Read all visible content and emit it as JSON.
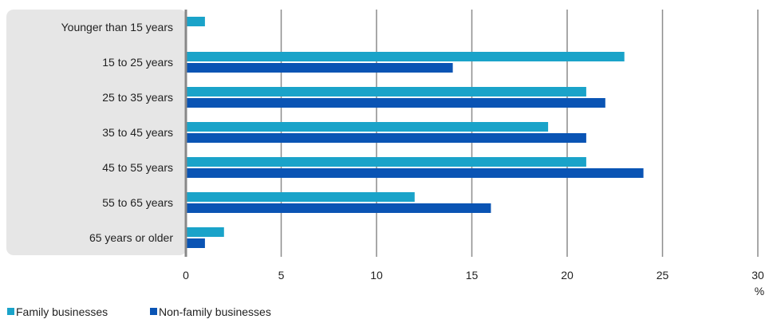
{
  "chart_data": {
    "type": "bar",
    "orientation": "horizontal",
    "categories": [
      "Younger than 15 years",
      "15 to 25 years",
      "25 to 35 years",
      "35 to 45 years",
      "45 to 55 years",
      "55 to 65 years",
      "65 years or older"
    ],
    "series": [
      {
        "name": "Family businesses",
        "color": "#1aa3c9",
        "values": [
          1,
          23,
          21,
          19,
          21,
          12,
          2
        ]
      },
      {
        "name": "Non-family businesses",
        "color": "#0a54b4",
        "values": [
          null,
          14,
          22,
          21,
          24,
          16,
          1
        ]
      }
    ],
    "xlim": [
      0,
      30
    ],
    "xticks": [
      "0",
      "5",
      "10",
      "15",
      "20",
      "25",
      "30"
    ],
    "xticks_values": [
      0,
      5,
      10,
      15,
      20,
      25,
      30
    ],
    "unit_label": "%",
    "grid": "vertical",
    "legend_position": "bottom-left"
  }
}
